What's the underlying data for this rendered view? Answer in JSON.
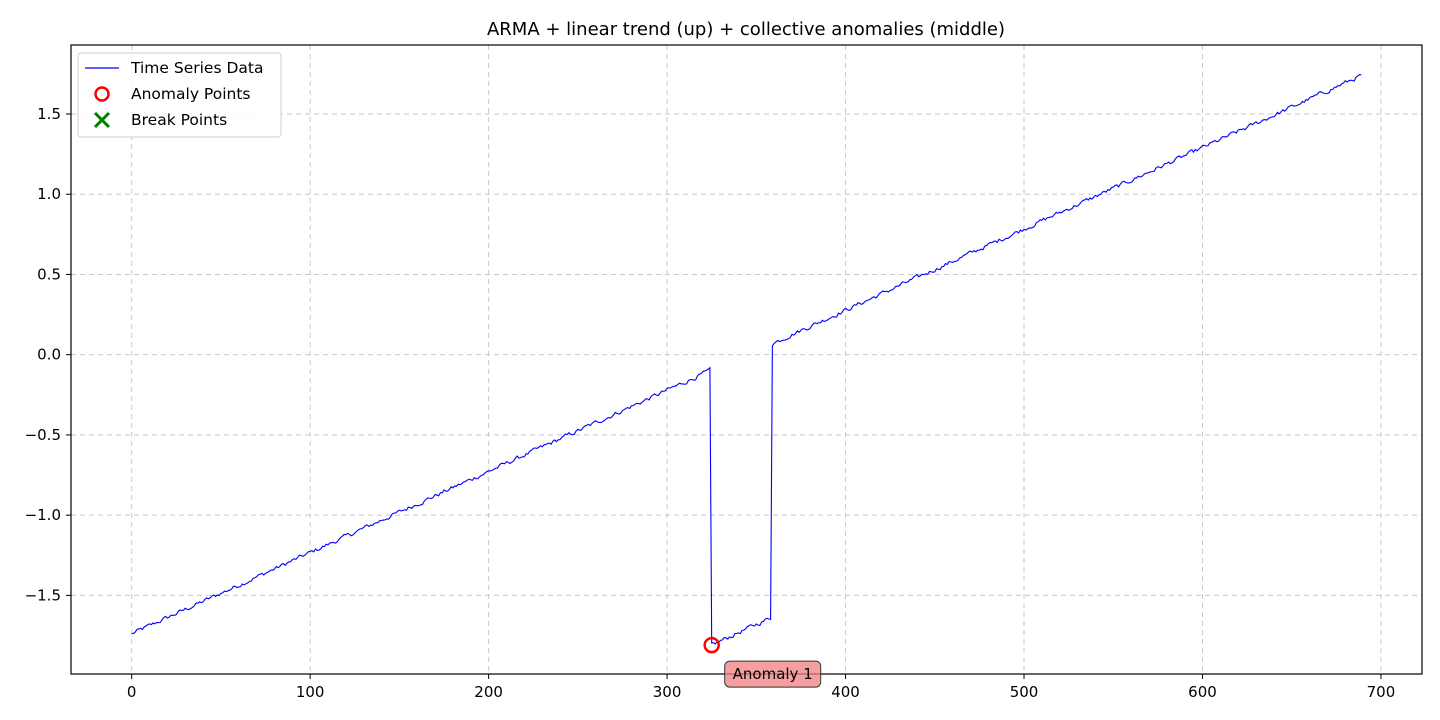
{
  "chart_data": {
    "type": "line",
    "title": "ARMA + linear trend (up) + collective anomalies (middle)",
    "xlabel": "",
    "ylabel": "",
    "xlim": [
      -34,
      723
    ],
    "ylim": [
      -1.99,
      1.93
    ],
    "grid": true,
    "legend_position": "top-left",
    "x_ticks": [
      0,
      100,
      200,
      300,
      400,
      500,
      600,
      700
    ],
    "x_tick_labels": [
      "0",
      "100",
      "200",
      "300",
      "400",
      "500",
      "600",
      "700"
    ],
    "y_ticks": [
      -1.5,
      -1.0,
      -0.5,
      0.0,
      0.5,
      1.0,
      1.5
    ],
    "y_tick_labels": [
      "−1.5",
      "−1.0",
      "−0.5",
      "0.0",
      "0.5",
      "1.0",
      "1.5"
    ],
    "series": [
      {
        "name": "Time Series Data",
        "color": "#0000ff",
        "trend_segments": [
          {
            "x_start": 0,
            "x_end": 324,
            "y_start": -1.74,
            "y_end": -0.1
          },
          {
            "x_start": 325,
            "x_end": 358,
            "y_start": -1.81,
            "y_end": -1.64
          },
          {
            "x_start": 359,
            "x_end": 689,
            "y_start": 0.07,
            "y_end": 1.74
          }
        ],
        "noise_amplitude": 0.012
      }
    ],
    "anomaly_points": [
      {
        "x": 325,
        "y": -1.81,
        "label": "Anomaly 1"
      }
    ],
    "break_points": [],
    "legend": [
      {
        "label": "Time Series Data",
        "marker": "line",
        "color": "#0000ff"
      },
      {
        "label": "Anomaly Points",
        "marker": "circle",
        "color": "#ff0000"
      },
      {
        "label": "Break Points",
        "marker": "x",
        "color": "#008000"
      }
    ],
    "annotation_box_color": "#f08080"
  }
}
